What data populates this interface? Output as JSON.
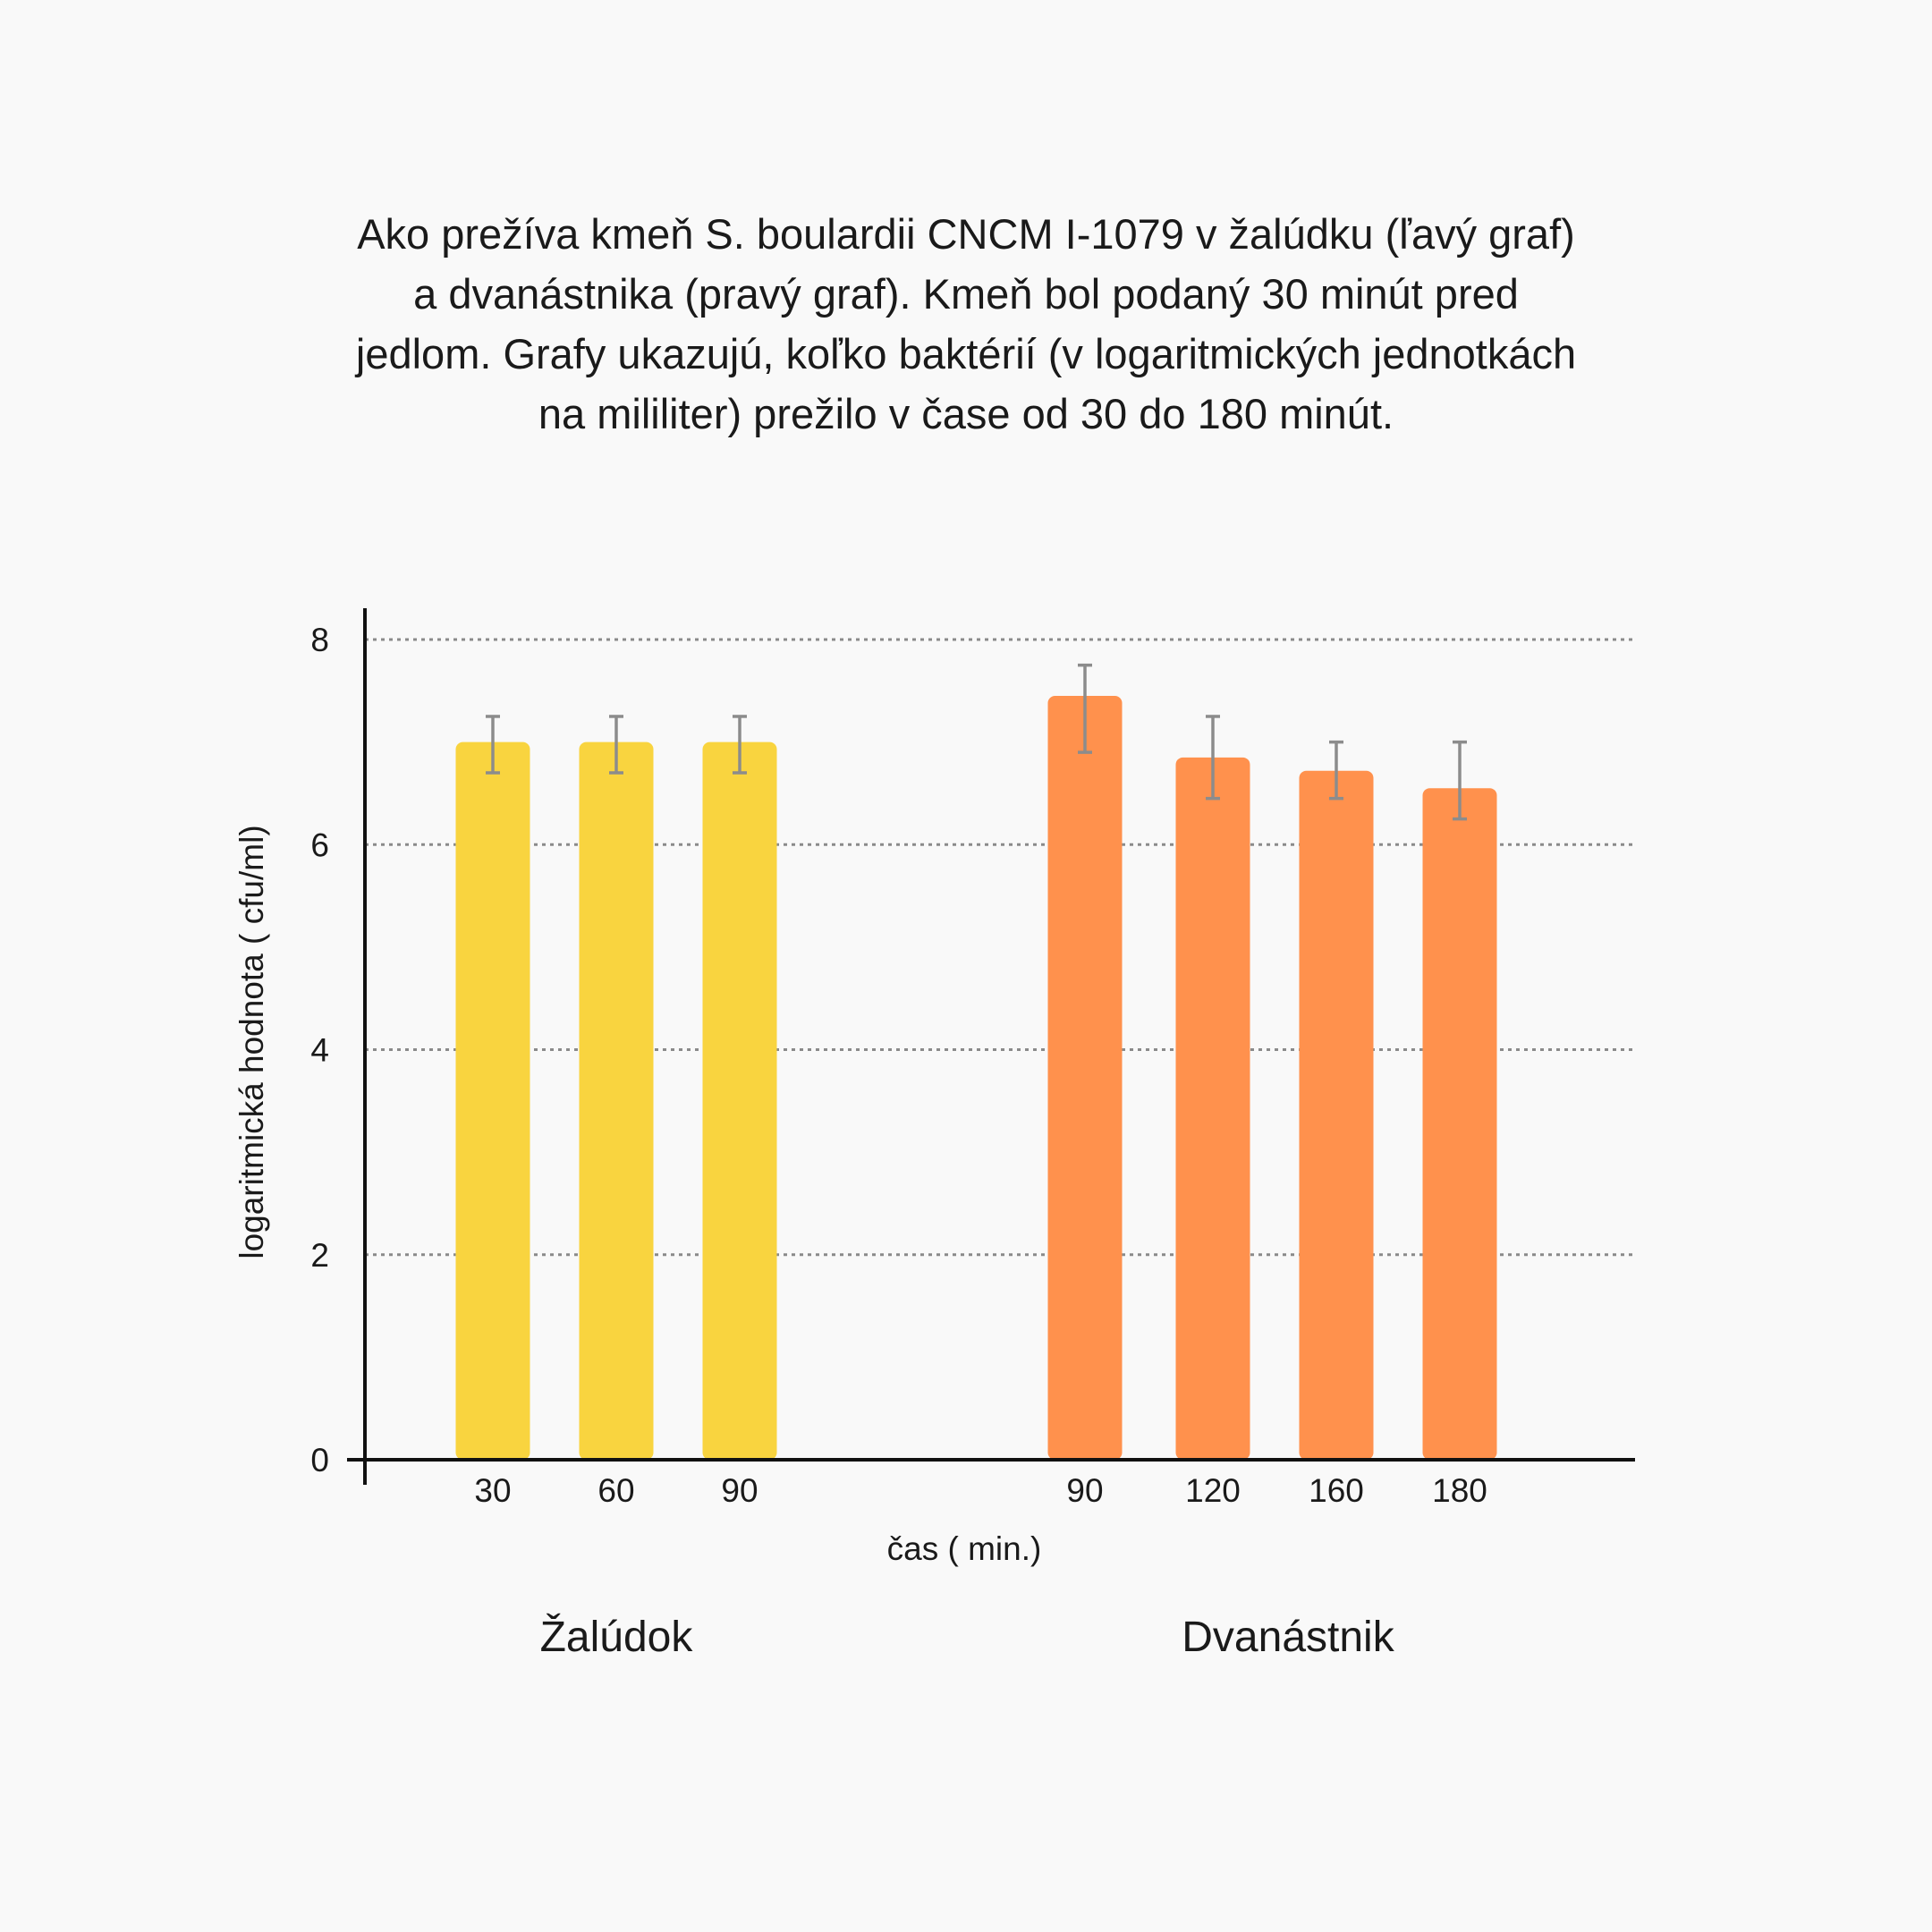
{
  "chart_data": {
    "type": "bar",
    "title_lines": [
      "Ako prežíva kmeň S. boulardii CNCM I-1079 v žalúdku (ľavý graf)",
      "a dvanástnika (pravý graf). Kmeň bol podaný 30 minút pred",
      "jedlom. Grafy ukazujú, koľko baktérií (v logaritmických jednotkách",
      "na mililiter) prežilo v čase od 30 do 180 minút."
    ],
    "xlabel": "čas ( min.)",
    "ylabel": "logaritmická hodnota ( cfu/ml)",
    "ylim": [
      0,
      8
    ],
    "yticks": [
      "0",
      "2",
      "4",
      "6",
      "8"
    ],
    "grid": true,
    "groups": [
      {
        "name": "Žalúdok",
        "color": "#f9d43f",
        "categories": [
          "30",
          "60",
          "90"
        ],
        "values": [
          7.0,
          7.0,
          7.0
        ],
        "error_low": [
          6.7,
          6.7,
          6.7
        ],
        "error_high": [
          7.25,
          7.25,
          7.25
        ]
      },
      {
        "name": "Dvanástnik",
        "color": "#ff914d",
        "categories": [
          "90",
          "120",
          "160",
          "180"
        ],
        "values": [
          7.45,
          6.85,
          6.72,
          6.55
        ],
        "error_low": [
          6.9,
          6.45,
          6.45,
          6.25
        ],
        "error_high": [
          7.75,
          7.25,
          7.0,
          7.0
        ]
      }
    ]
  }
}
